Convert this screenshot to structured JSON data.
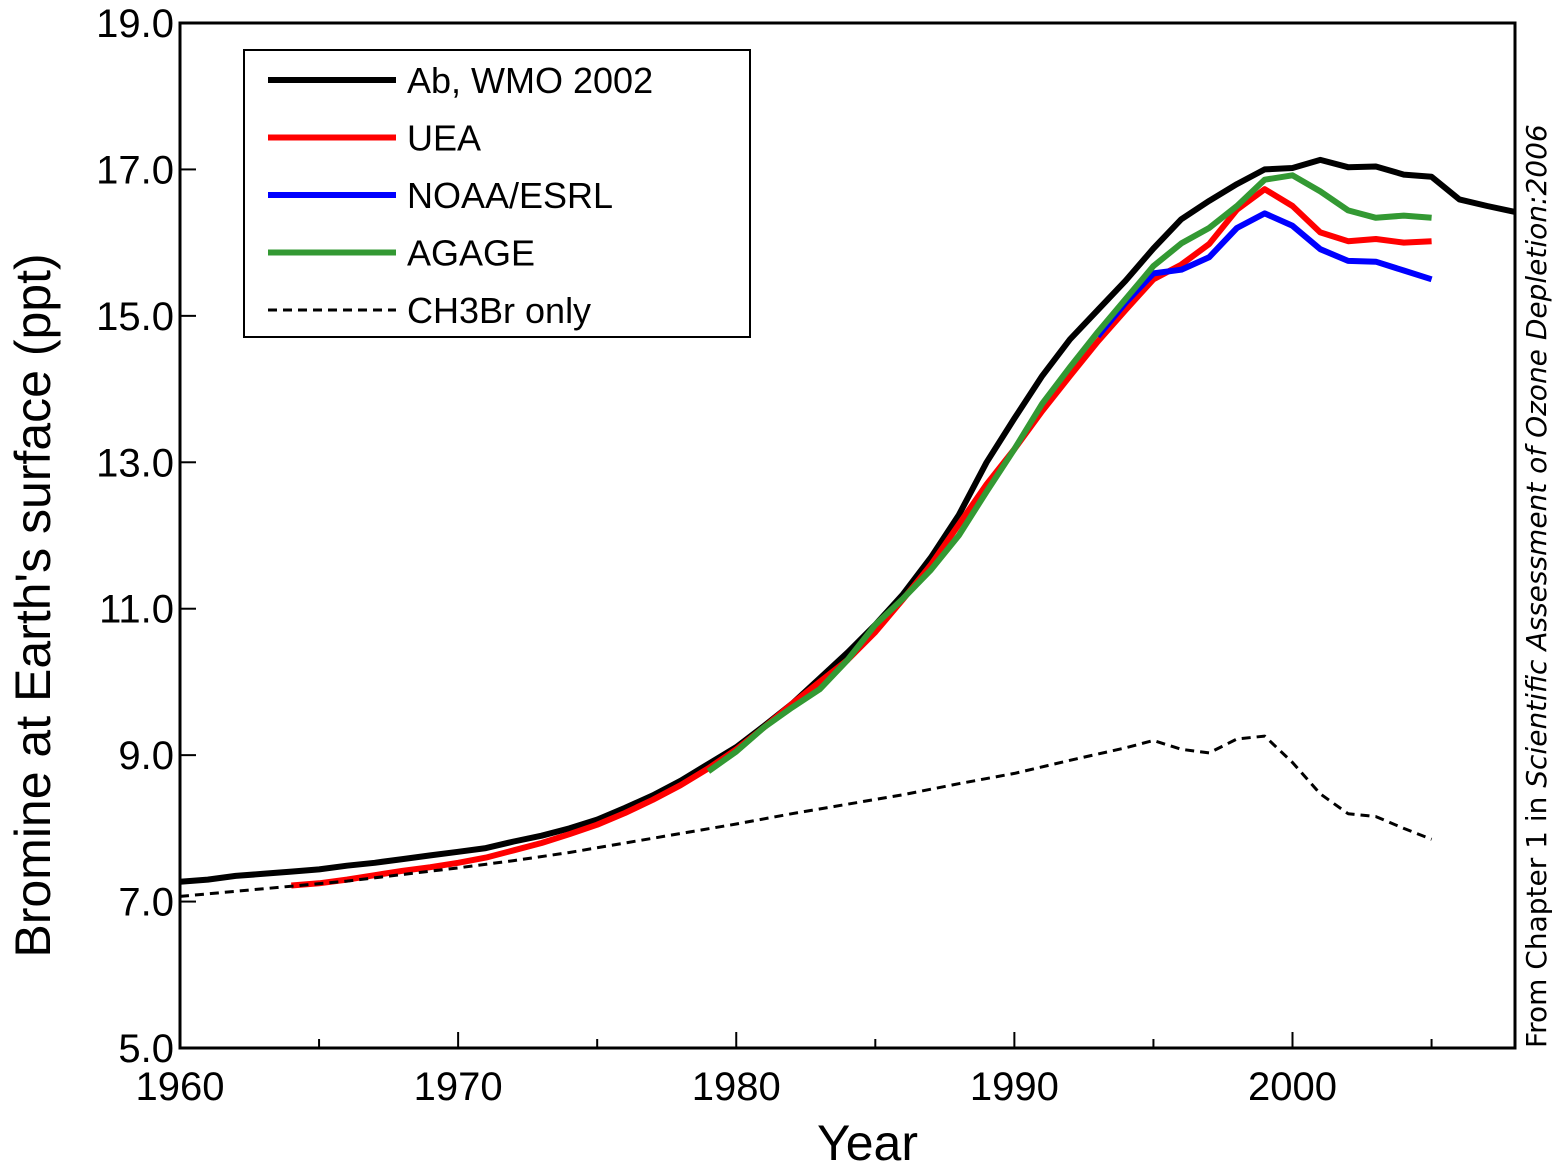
{
  "chart_data": {
    "type": "line",
    "xlabel": "Year",
    "ylabel": "Bromine at Earth's surface (ppt)",
    "xlim": [
      1960,
      2008
    ],
    "ylim": [
      5.0,
      19.0
    ],
    "x_ticks": [
      1960,
      1970,
      1980,
      1990,
      2000
    ],
    "x_tick_labels": [
      "1960",
      "1970",
      "1980",
      "1990",
      "2000"
    ],
    "x_minor_ticks": [
      1965,
      1975,
      1985,
      1995,
      2005
    ],
    "y_ticks": [
      5,
      7,
      9,
      11,
      13,
      15,
      17,
      19
    ],
    "y_tick_labels": [
      "5.0",
      "7.0",
      "9.0",
      "11.0",
      "13.0",
      "15.0",
      "17.0",
      "19.0"
    ],
    "grid": false,
    "legend_position": "top-left",
    "credit": {
      "prefix": "From Chapter 1 in ",
      "italic": "Scientific Assessment of Ozone Depletion:2006"
    },
    "series": [
      {
        "name": "Ab, WMO 2002",
        "color": "#000000",
        "style": "solid",
        "x": [
          1960,
          1961,
          1962,
          1963,
          1964,
          1965,
          1966,
          1967,
          1968,
          1969,
          1970,
          1971,
          1972,
          1973,
          1974,
          1975,
          1976,
          1977,
          1978,
          1979,
          1980,
          1981,
          1982,
          1983,
          1984,
          1985,
          1986,
          1987,
          1988,
          1989,
          1990,
          1991,
          1992,
          1993,
          1994,
          1995,
          1996,
          1997,
          1998,
          1999,
          2000,
          2001,
          2002,
          2003,
          2004,
          2005,
          2006,
          2007,
          2008
        ],
        "values": [
          7.27,
          7.3,
          7.35,
          7.38,
          7.41,
          7.44,
          7.49,
          7.53,
          7.58,
          7.63,
          7.68,
          7.73,
          7.82,
          7.9,
          8.0,
          8.12,
          8.28,
          8.45,
          8.65,
          8.88,
          9.11,
          9.4,
          9.7,
          10.05,
          10.4,
          10.78,
          11.2,
          11.7,
          12.28,
          13.0,
          13.6,
          14.18,
          14.68,
          15.08,
          15.48,
          15.92,
          16.32,
          16.57,
          16.8,
          17.0,
          17.02,
          17.13,
          17.03,
          17.04,
          16.93,
          16.9,
          16.59,
          16.5,
          16.42
        ]
      },
      {
        "name": "UEA",
        "color": "#ff0000",
        "style": "solid",
        "x": [
          1964,
          1965,
          1966,
          1967,
          1968,
          1969,
          1970,
          1971,
          1972,
          1973,
          1974,
          1975,
          1976,
          1977,
          1978,
          1979,
          1980,
          1981,
          1982,
          1983,
          1984,
          1985,
          1986,
          1987,
          1988,
          1989,
          1990,
          1991,
          1992,
          1993,
          1994,
          1995,
          1996,
          1997,
          1998,
          1999,
          2000,
          2001,
          2002,
          2003,
          2004,
          2005
        ],
        "values": [
          7.22,
          7.25,
          7.3,
          7.36,
          7.42,
          7.47,
          7.53,
          7.6,
          7.7,
          7.8,
          7.92,
          8.05,
          8.21,
          8.39,
          8.59,
          8.82,
          9.08,
          9.38,
          9.7,
          10.0,
          10.3,
          10.68,
          11.13,
          11.6,
          12.15,
          12.7,
          13.18,
          13.7,
          14.18,
          14.65,
          15.08,
          15.5,
          15.7,
          15.98,
          16.45,
          16.73,
          16.5,
          16.14,
          16.02,
          16.05,
          16.0,
          16.02
        ]
      },
      {
        "name": "NOAA/ESRL",
        "color": "#0000ff",
        "style": "solid",
        "x": [
          1993,
          1994,
          1995,
          1996,
          1997,
          1998,
          1999,
          2000,
          2001,
          2002,
          2003,
          2004,
          2005
        ],
        "values": [
          14.72,
          15.18,
          15.58,
          15.63,
          15.8,
          16.2,
          16.4,
          16.23,
          15.91,
          15.75,
          15.74,
          15.62,
          15.5
        ]
      },
      {
        "name": "AGAGE",
        "color": "#339933",
        "style": "solid",
        "x": [
          1979,
          1980,
          1981,
          1982,
          1983,
          1984,
          1985,
          1986,
          1987,
          1988,
          1989,
          1990,
          1991,
          1992,
          1993,
          1994,
          1995,
          1996,
          1997,
          1998,
          1999,
          2000,
          2001,
          2002,
          2003,
          2004,
          2005
        ],
        "values": [
          8.78,
          9.05,
          9.38,
          9.65,
          9.9,
          10.3,
          10.78,
          11.14,
          11.53,
          12.0,
          12.6,
          13.18,
          13.8,
          14.3,
          14.78,
          15.23,
          15.68,
          15.99,
          16.2,
          16.5,
          16.86,
          16.92,
          16.7,
          16.44,
          16.34,
          16.37,
          16.34
        ]
      },
      {
        "name": "CH3Br only",
        "color": "#000000",
        "style": "dashed",
        "x": [
          1960,
          1962,
          1964,
          1966,
          1968,
          1970,
          1972,
          1974,
          1976,
          1978,
          1980,
          1982,
          1984,
          1986,
          1988,
          1990,
          1992,
          1994,
          1995,
          1996,
          1997,
          1998,
          1999,
          2000,
          2001,
          2002,
          2003,
          2004,
          2005
        ],
        "values": [
          7.07,
          7.14,
          7.21,
          7.28,
          7.37,
          7.46,
          7.56,
          7.67,
          7.8,
          7.93,
          8.06,
          8.2,
          8.33,
          8.46,
          8.61,
          8.75,
          8.93,
          9.1,
          9.2,
          9.08,
          9.03,
          9.22,
          9.26,
          8.9,
          8.47,
          8.2,
          8.16,
          8.0,
          7.85
        ]
      }
    ]
  }
}
